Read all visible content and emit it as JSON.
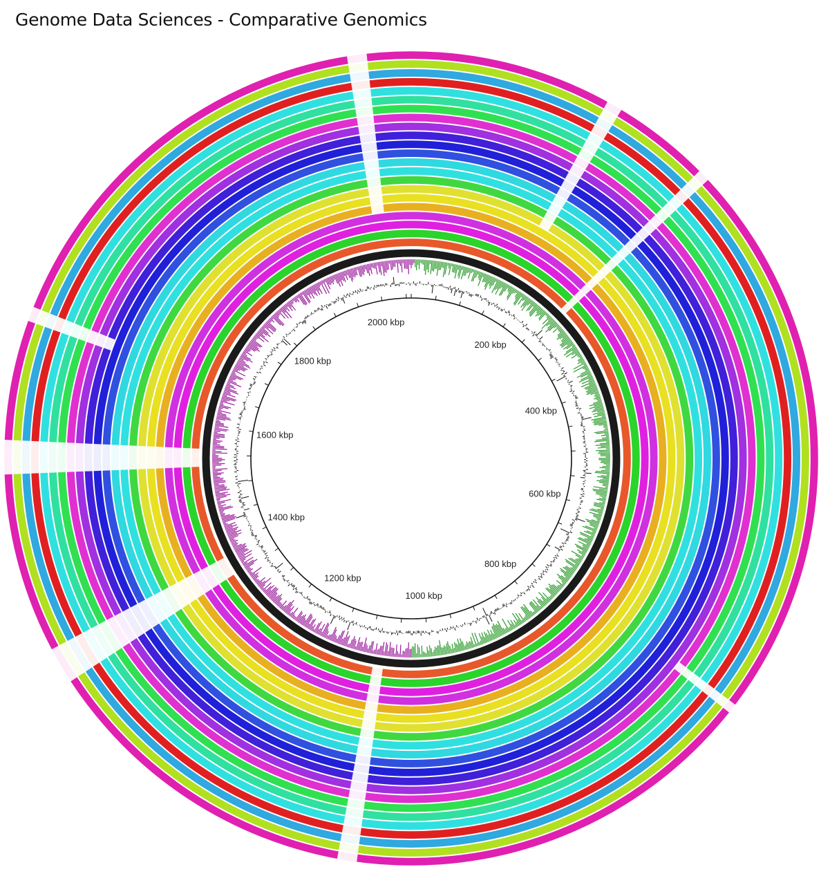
{
  "title": "Genome Data Sciences - Comparative Genomics",
  "chart_data": {
    "type": "circular-genome-map",
    "genome_length_kbp": 2060,
    "tick_labels": [
      {
        "kbp": 200,
        "label": "200 kbp"
      },
      {
        "kbp": 400,
        "label": "400 kbp"
      },
      {
        "kbp": 600,
        "label": "600 kbp"
      },
      {
        "kbp": 800,
        "label": "800 kbp"
      },
      {
        "kbp": 1000,
        "label": "1000 kbp"
      },
      {
        "kbp": 1200,
        "label": "1200 kbp"
      },
      {
        "kbp": 1400,
        "label": "1400 kbp"
      },
      {
        "kbp": 1600,
        "label": "1600 kbp"
      },
      {
        "kbp": 1800,
        "label": "1800 kbp"
      },
      {
        "kbp": 2000,
        "label": "2000 kbp"
      }
    ],
    "inner_tracks": {
      "gc_content_color": "#111111",
      "gc_skew_positive_color": "#2a9a2a",
      "gc_skew_negative_color": "#9a1a9a",
      "reference_ring_color": "#1a1a1a"
    },
    "rings_inner_to_outer": [
      "#e8582a",
      "#2ad42a",
      "#e020e0",
      "#d030e0",
      "#e8b020",
      "#e8e020",
      "#e0e030",
      "#40d840",
      "#30e0e0",
      "#30d8e0",
      "#3050e0",
      "#2020d8",
      "#4020d8",
      "#a030e0",
      "#e030d0",
      "#30e050",
      "#30e0a0",
      "#30e0e0",
      "#e02020",
      "#30a8e0",
      "#b0e020",
      "#e020b0"
    ],
    "gap_regions_kbp": [
      {
        "start": 2008,
        "end": 2024,
        "from_ring": 4
      },
      {
        "start": 165,
        "end": 178,
        "from_ring": 6
      },
      {
        "start": 258,
        "end": 268,
        "from_ring": 0
      },
      {
        "start": 1532,
        "end": 1560,
        "from_ring": 0
      },
      {
        "start": 1658,
        "end": 1670,
        "from_ring": 12
      },
      {
        "start": 1074,
        "end": 1090,
        "from_ring": 0
      },
      {
        "start": 1355,
        "end": 1385,
        "from_ring": 0
      },
      {
        "start": 728,
        "end": 736,
        "from_ring": 14
      }
    ]
  }
}
